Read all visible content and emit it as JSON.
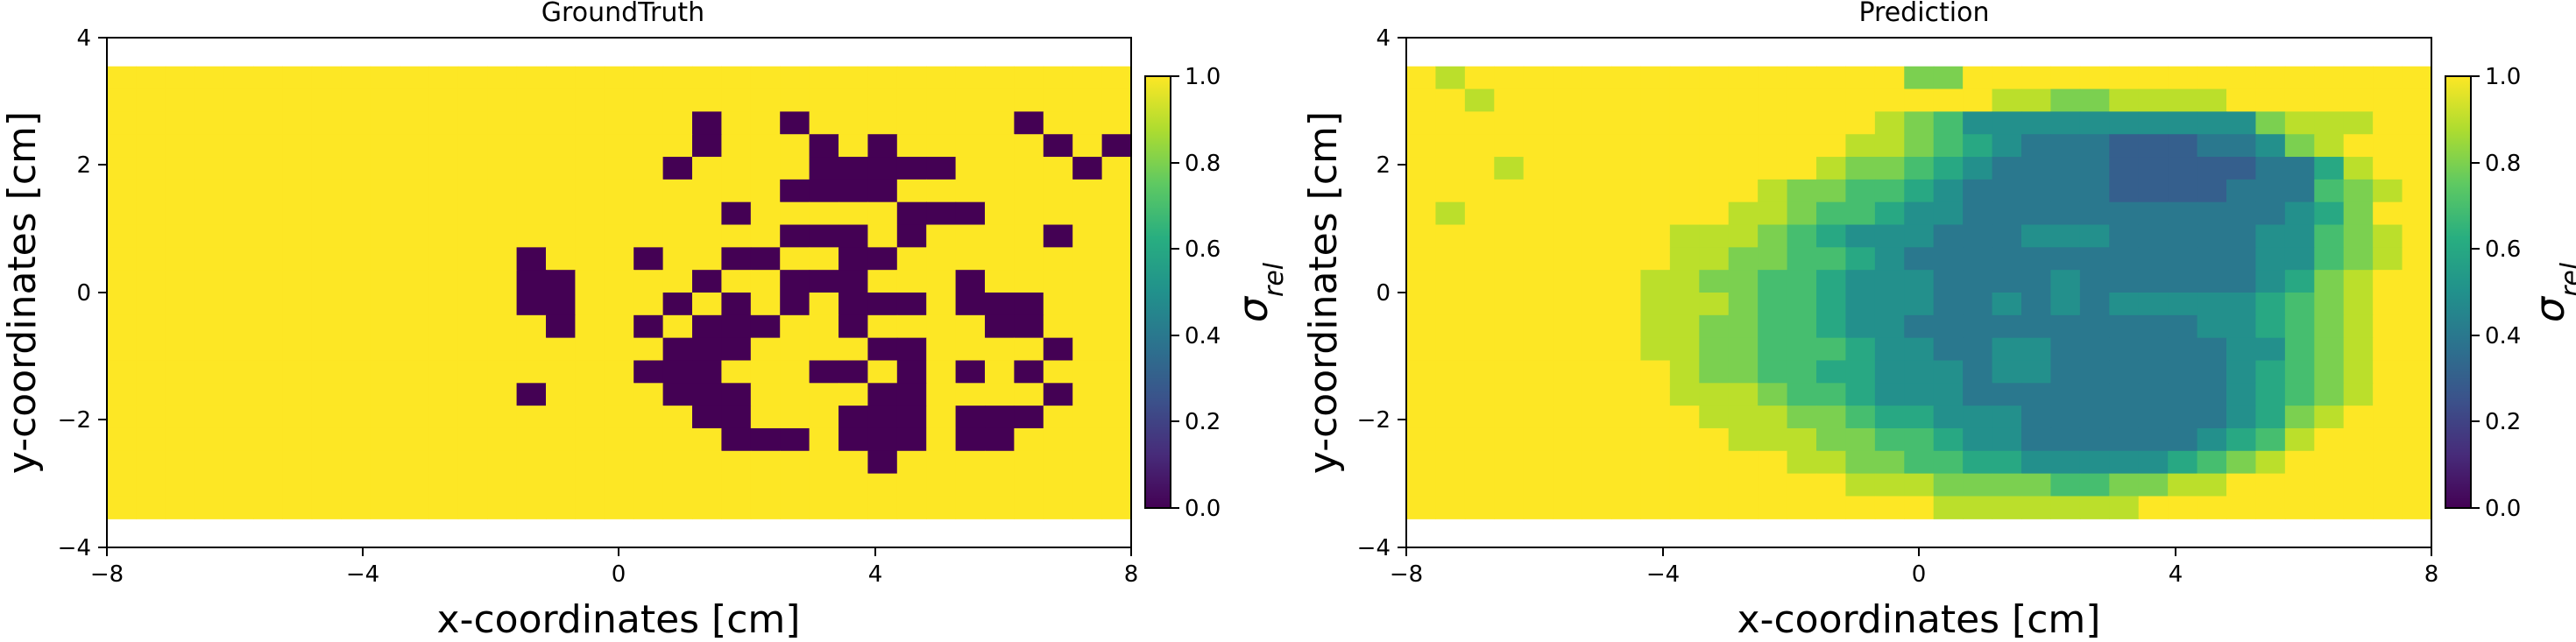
{
  "chart_data": [
    {
      "type": "heatmap",
      "title": "GroundTruth",
      "xlabel": "x-coordinates [cm]",
      "ylabel": "y-coordinates [cm]",
      "xlim": [
        -8,
        8
      ],
      "ylim": [
        -4,
        4
      ],
      "extent": [
        -8,
        8,
        -3.55,
        3.55
      ],
      "xticks": [
        "−8",
        "−4",
        "0",
        "4",
        "8"
      ],
      "yticks": [
        "−4",
        "−2",
        "0",
        "2",
        "4"
      ],
      "colorbar": {
        "label": "σ_rel",
        "min": 0.0,
        "max": 1.0,
        "ticks": [
          "0.0",
          "0.2",
          "0.4",
          "0.6",
          "0.8",
          "1.0"
        ],
        "colormap": "viridis"
      },
      "grid": [
        "11111111111111111111111111111111111",
        "11111111111111111111111111111111111",
        "11111111111111111111011011111110111",
        "11111111111111111111011101011111010",
        "11111111111111111110111100000111101",
        "11111111111111111111111000011111111",
        "11111111111111111111101111100011111",
        "11111111111111111111111000101111011",
        "11111111111111011101100110011111111",
        "11111111111111001111011000111011111",
        "11111111111111001110101010001000111",
        "11111111111111101101000110111100111",
        "11111111111111111110001111001111011",
        "11111111111111111100011100101010111",
        "11111111111111011110001111001111011",
        "11111111111111111111001110001000111",
        "11111111111111111111100010001001111",
        "11111111111111111111111111011111111",
        "11111111111111111111111111111111111",
        "11111111111111111111111111111111111"
      ]
    },
    {
      "type": "heatmap",
      "title": "Prediction",
      "xlabel": "x-coordinates [cm]",
      "ylabel": "y-coordinates [cm]",
      "xlim": [
        -8,
        8
      ],
      "ylim": [
        -4,
        4
      ],
      "extent": [
        -8,
        8,
        -3.55,
        3.55
      ],
      "xticks": [
        "−8",
        "−4",
        "0",
        "4",
        "8"
      ],
      "yticks": [
        "−4",
        "−2",
        "0",
        "2",
        "4"
      ],
      "colorbar": {
        "label": "σ_rel",
        "min": 0.0,
        "max": 1.0,
        "ticks": [
          "0.0",
          "0.2",
          "0.4",
          "0.6",
          "0.8",
          "1.0"
        ],
        "colormap": "viridis"
      },
      "grid": [
        "98999999999999999779999999999999999",
        "99899999999999999999887788889999999",
        "99999999999999998764444444444788899",
        "99999999999999988765433322233478999",
        "99989999999999877654333322222335899",
        "99999999999987766543333322223336789",
        "98999999999887665443333333333345799",
        "99999999988876544433344433333446789",
        "99999999988776654333333333333446789",
        "99999999887766544433334333333457899",
        "99999999888766544433434344444567899",
        "99999999887766544333333333344567899",
        "99999999887766654433443333334467899",
        "99999999987766554443443333334567899",
        "99999999988876654443333333334567899",
        "99999999998887765544433333334578999",
        "99999999999888776654433333345689999",
        "99999999999998877665544444567899999",
        "99999999999999988877776677889999999",
        "99999999999999999988888889999999999"
      ]
    }
  ]
}
